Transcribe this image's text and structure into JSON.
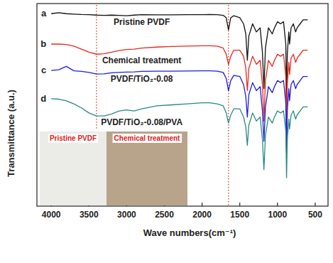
{
  "chart_data": {
    "type": "line",
    "x_label": "Wave numbers(cm⁻¹)",
    "y_label": "Transmittance (a.u.)",
    "xlim": [
      4190,
      330
    ],
    "xticks": [
      4000,
      3500,
      3000,
      2500,
      2000,
      1500,
      1000,
      500
    ],
    "ylim": [
      0,
      100
    ],
    "tick_labels": "x",
    "vlines": [
      3400,
      1650
    ],
    "x": [
      4000,
      3900,
      3800,
      3700,
      3600,
      3500,
      3400,
      3300,
      3200,
      3100,
      3000,
      2900,
      2800,
      2600,
      2400,
      2200,
      2000,
      1900,
      1800,
      1720,
      1680,
      1650,
      1620,
      1580,
      1500,
      1450,
      1420,
      1400,
      1380,
      1330,
      1280,
      1230,
      1200,
      1180,
      1160,
      1120,
      1070,
      1040,
      1000,
      960,
      920,
      890,
      880,
      870,
      850,
      840,
      820,
      790,
      760,
      740,
      700,
      660,
      600
    ],
    "series": [
      {
        "name": "Pristine PVDF",
        "letter": "a",
        "color": "#111111",
        "values": [
          95,
          95.5,
          95,
          94.8,
          94.6,
          94.5,
          94.3,
          94.2,
          94.3,
          94.2,
          94,
          94.3,
          94.5,
          94.4,
          94.4,
          94.5,
          94.5,
          94.6,
          94.5,
          94.2,
          93,
          87,
          93,
          94,
          93,
          90,
          85,
          72,
          84,
          90,
          86,
          88,
          76,
          58,
          78,
          88,
          85,
          88,
          91,
          90,
          91,
          80,
          53,
          75,
          86,
          80,
          88,
          90,
          86,
          88,
          90,
          92,
          92
        ]
      },
      {
        "name": "Chemical treatment",
        "letter": "b",
        "color": "#e8291c",
        "values": [
          80,
          80,
          79.8,
          79,
          77.5,
          76,
          75,
          75.2,
          76,
          76.8,
          77.3,
          77.5,
          78,
          78.5,
          78.8,
          79,
          79.2,
          79.2,
          79,
          78,
          75,
          70,
          74,
          77,
          77,
          74,
          68,
          57,
          68,
          74,
          70,
          72,
          60,
          42,
          62,
          72,
          69,
          72,
          75,
          74,
          75,
          64,
          38,
          60,
          71,
          65,
          73,
          75,
          71,
          73,
          75,
          77,
          77
        ]
      },
      {
        "name": "PVDF/TiO₂-0.08",
        "letter": "c",
        "color": "#1c1ce0",
        "values": [
          67,
          67.3,
          69,
          66.8,
          66.5,
          66,
          65.2,
          65.3,
          65.8,
          66,
          66.2,
          66.3,
          66.5,
          66.6,
          66.6,
          66.7,
          66.8,
          66.8,
          66.6,
          66,
          63,
          57,
          62,
          64.5,
          64,
          60,
          54,
          44,
          55,
          61,
          57,
          59,
          47,
          32,
          49,
          59,
          56,
          59,
          62,
          61,
          62,
          51,
          26,
          47,
          58,
          52,
          60,
          62,
          58,
          60,
          62,
          64,
          64
        ]
      },
      {
        "name": "PVDF/TiO₂-0.08/PVA",
        "letter": "d",
        "color": "#2a8a80",
        "values": [
          53,
          52.8,
          52,
          50.5,
          48.5,
          46,
          44.5,
          44.5,
          45.5,
          47,
          47.5,
          47,
          48,
          49.5,
          50,
          50.5,
          51,
          51,
          50.5,
          49.5,
          46,
          41,
          45,
          48,
          48,
          44,
          39,
          30,
          40,
          46,
          42,
          44,
          33,
          18,
          35,
          44,
          41,
          44,
          47,
          46,
          47,
          37,
          14,
          33,
          43,
          38,
          45,
          47,
          43,
          45,
          47,
          49,
          49
        ]
      }
    ],
    "inset": {
      "labels": [
        "Pristine PVDF",
        "Chemical treatment"
      ]
    }
  }
}
